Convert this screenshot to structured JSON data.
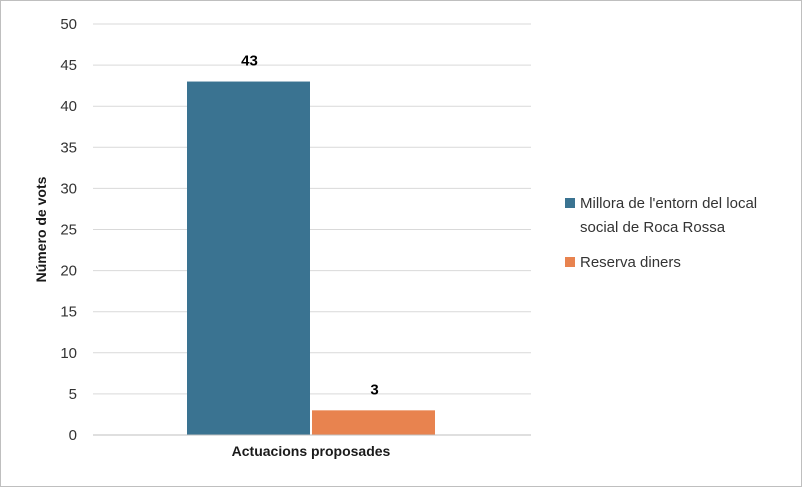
{
  "chart_data": {
    "type": "bar",
    "categories": [
      "Actuacions proposades"
    ],
    "series": [
      {
        "name": "Millora de l'entorn del local social de Roca Rossa",
        "values": [
          43
        ],
        "color": "#3a7391"
      },
      {
        "name": "Reserva diners",
        "values": [
          3
        ],
        "color": "#e8834f"
      }
    ],
    "data_labels": [
      "43",
      "3"
    ],
    "xlabel": "Actuacions proposades",
    "ylabel": "Número de vots",
    "ylim": [
      0,
      50
    ],
    "yticks": [
      0,
      5,
      10,
      15,
      20,
      25,
      30,
      35,
      40,
      45,
      50
    ],
    "grid": true,
    "legend_position": "right",
    "legend_lines": [
      [
        "Millora de l'entorn del local",
        "social de Roca Rossa"
      ],
      [
        "Reserva diners"
      ]
    ]
  }
}
